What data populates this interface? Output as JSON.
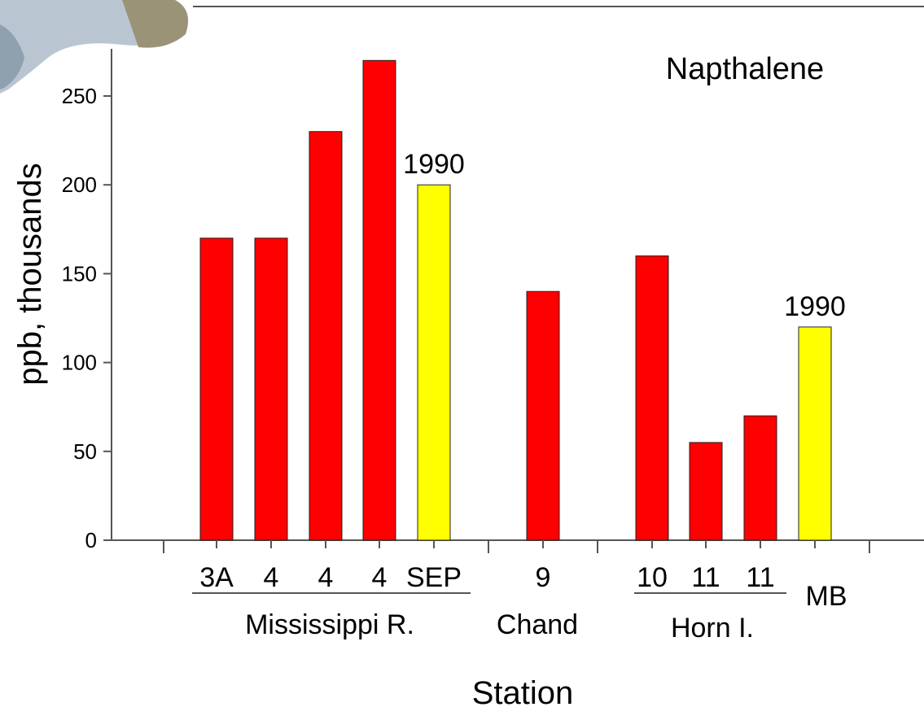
{
  "chart_data": {
    "type": "bar",
    "title": "Napthalene",
    "xlabel": "Station",
    "ylabel": "ppb, thousands",
    "ylim": [
      0,
      280
    ],
    "yticks": [
      0,
      50,
      100,
      150,
      200,
      250
    ],
    "grid": false,
    "categories": [
      "3A",
      "4",
      "4",
      "4",
      "SEP",
      "9",
      "10",
      "11",
      "11",
      "MB"
    ],
    "values": [
      170,
      170,
      230,
      270,
      200,
      140,
      160,
      55,
      70,
      120
    ],
    "bar_colors": [
      "#ff0000",
      "#ff0000",
      "#ff0000",
      "#ff0000",
      "#ffff00",
      "#ff0000",
      "#ff0000",
      "#ff0000",
      "#ff0000",
      "#ffff00"
    ],
    "data_labels": [
      "",
      "",
      "",
      "",
      "1990",
      "",
      "",
      "",
      "",
      "1990"
    ],
    "groups": [
      {
        "label": "Mississippi R.",
        "categories": [
          "3A",
          "4",
          "4",
          "4",
          "SEP"
        ]
      },
      {
        "label": "Chand",
        "categories": [
          "9"
        ]
      },
      {
        "label": "Horn I.",
        "categories": [
          "10",
          "11",
          "11"
        ]
      }
    ]
  }
}
